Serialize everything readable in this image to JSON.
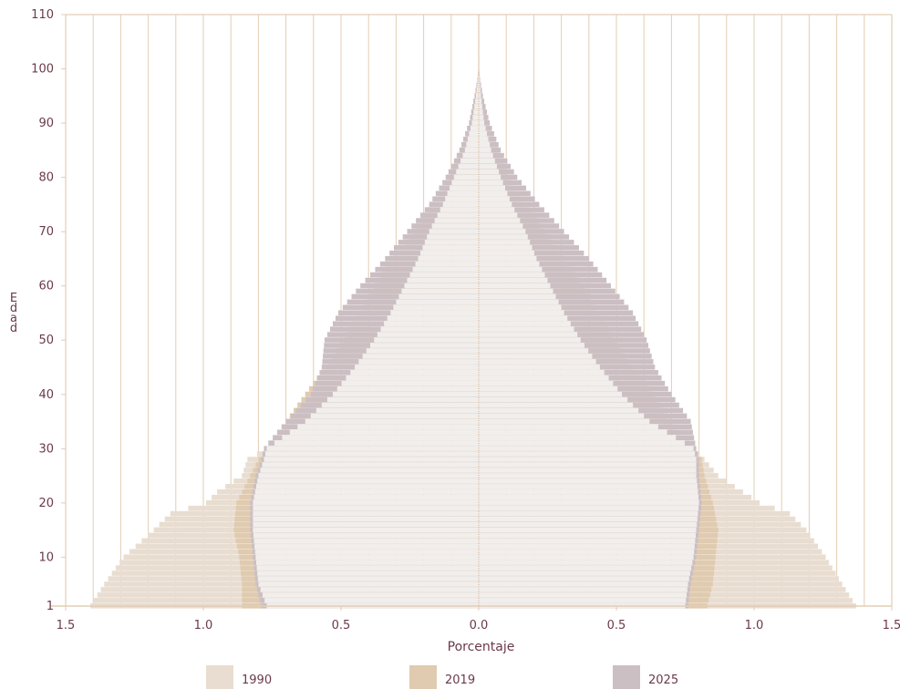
{
  "chart_data": {
    "type": "bar",
    "subtype": "population-pyramid",
    "xlabel": "Porcentaje",
    "ylabel": "Edad",
    "xlim": [
      -1.5,
      1.5
    ],
    "ylim": [
      1,
      110
    ],
    "x_ticks": [
      "1.5",
      "1.0",
      "0.5",
      "0.0",
      "0.5",
      "1.0",
      "1.5"
    ],
    "y_ticks": [
      "1",
      "10",
      "20",
      "30",
      "40",
      "50",
      "60",
      "70",
      "80",
      "90",
      "100",
      "110"
    ],
    "y_tick_values": [
      1,
      10,
      20,
      30,
      40,
      50,
      60,
      70,
      80,
      90,
      100,
      110
    ],
    "grid": "vertical",
    "legend_position": "bottom",
    "series": [
      {
        "name": "1990",
        "color": "#e8ddd0",
        "profile_age": [
          1,
          5,
          10,
          15,
          18,
          20,
          22,
          25,
          28,
          30,
          35,
          40,
          45,
          50,
          55,
          60,
          65,
          70,
          75,
          80,
          85,
          90,
          95,
          98,
          100
        ],
        "left": [
          1.41,
          1.36,
          1.29,
          1.18,
          1.12,
          0.99,
          0.95,
          0.86,
          0.84,
          0.77,
          0.7,
          0.63,
          0.56,
          0.49,
          0.44,
          0.38,
          0.31,
          0.24,
          0.17,
          0.11,
          0.07,
          0.035,
          0.015,
          0.005,
          0.0
        ],
        "right": [
          1.37,
          1.32,
          1.26,
          1.19,
          1.13,
          1.02,
          0.96,
          0.87,
          0.82,
          0.78,
          0.7,
          0.63,
          0.56,
          0.49,
          0.44,
          0.38,
          0.31,
          0.24,
          0.17,
          0.11,
          0.07,
          0.035,
          0.015,
          0.005,
          0.0
        ]
      },
      {
        "name": "2019",
        "color": "#e0cbb0",
        "profile_age": [
          1,
          5,
          10,
          15,
          20,
          25,
          28,
          30,
          35,
          40,
          45,
          50,
          55,
          60,
          65,
          70,
          75,
          80,
          85,
          90,
          95,
          98,
          100
        ],
        "left": [
          0.86,
          0.86,
          0.87,
          0.89,
          0.88,
          0.83,
          0.8,
          0.77,
          0.7,
          0.63,
          0.56,
          0.49,
          0.44,
          0.38,
          0.31,
          0.24,
          0.17,
          0.11,
          0.07,
          0.035,
          0.015,
          0.005,
          0.0
        ],
        "right": [
          0.83,
          0.85,
          0.86,
          0.87,
          0.85,
          0.82,
          0.81,
          0.78,
          0.7,
          0.63,
          0.56,
          0.49,
          0.44,
          0.38,
          0.31,
          0.24,
          0.17,
          0.11,
          0.07,
          0.035,
          0.015,
          0.005,
          0.0
        ]
      },
      {
        "name": "2025",
        "color": "#cbbfc3",
        "profile_age": [
          1,
          5,
          10,
          15,
          20,
          25,
          28,
          30,
          35,
          40,
          45,
          50,
          55,
          60,
          65,
          70,
          75,
          80,
          85,
          90,
          95,
          98,
          100
        ],
        "left": [
          0.79,
          0.81,
          0.82,
          0.83,
          0.83,
          0.81,
          0.79,
          0.78,
          0.7,
          0.61,
          0.57,
          0.56,
          0.51,
          0.43,
          0.34,
          0.26,
          0.18,
          0.12,
          0.07,
          0.035,
          0.015,
          0.005,
          0.0
        ],
        "right": [
          0.76,
          0.77,
          0.79,
          0.8,
          0.81,
          0.8,
          0.8,
          0.79,
          0.77,
          0.7,
          0.64,
          0.61,
          0.56,
          0.48,
          0.4,
          0.31,
          0.22,
          0.14,
          0.08,
          0.04,
          0.015,
          0.005,
          0.0
        ]
      },
      {
        "name": "",
        "color": "#f1eeec",
        "profile_age": [
          1,
          5,
          10,
          15,
          20,
          25,
          28,
          30,
          35,
          40,
          45,
          50,
          55,
          60,
          65,
          70,
          75,
          80,
          85,
          90,
          95,
          98,
          100
        ],
        "left": [
          0.77,
          0.8,
          0.81,
          0.82,
          0.82,
          0.8,
          0.78,
          0.77,
          0.63,
          0.53,
          0.45,
          0.38,
          0.32,
          0.27,
          0.22,
          0.18,
          0.13,
          0.09,
          0.05,
          0.025,
          0.01,
          0.003,
          0.0
        ],
        "right": [
          0.75,
          0.76,
          0.78,
          0.79,
          0.8,
          0.79,
          0.79,
          0.78,
          0.62,
          0.52,
          0.44,
          0.37,
          0.31,
          0.26,
          0.21,
          0.17,
          0.12,
          0.08,
          0.045,
          0.02,
          0.008,
          0.003,
          0.0
        ]
      }
    ]
  },
  "legend": [
    {
      "label": "1990",
      "color": "#e8ddd0"
    },
    {
      "label": "2019",
      "color": "#e0cbb0"
    },
    {
      "label": "2025",
      "color": "#cbbfc3"
    }
  ],
  "colors": {
    "axis": "#e3cdb4",
    "grid": "#e3cdb4",
    "text": "#6b3a48",
    "center_line": "#d8b896"
  }
}
